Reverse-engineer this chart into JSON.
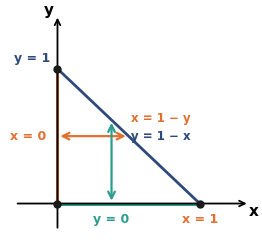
{
  "line_x": [
    0,
    1
  ],
  "line_y": [
    1,
    0
  ],
  "line_color": "#2e4a7a",
  "line_width": 2.0,
  "orange_color": "#e07030",
  "teal_color": "#2a9d8f",
  "dot_color": "#1a1a1a",
  "xlim": [
    -0.35,
    1.4
  ],
  "ylim": [
    -0.25,
    1.45
  ],
  "label_y1": "y = 1",
  "label_x0": "x = 0",
  "label_x1y": "x = 1 − y",
  "label_y1x": "y = 1 − x",
  "label_y0": "y = 0",
  "label_x1": "x = 1",
  "xlabel": "x",
  "ylabel": "y"
}
